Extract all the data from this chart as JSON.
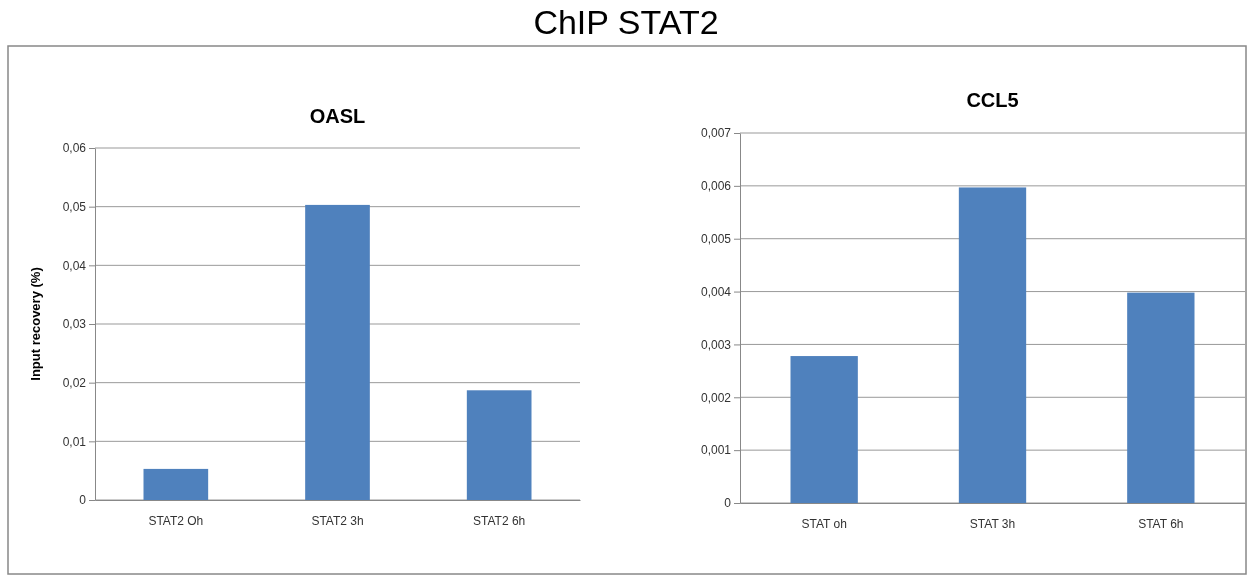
{
  "chart_data": [
    {
      "type": "bar",
      "title": "OASL",
      "annotations": [
        "ChIP STAT2"
      ],
      "ylabel": "Input recovery (%)",
      "categories": [
        "STAT2 Oh",
        "STAT2 3h",
        "STAT2 6h"
      ],
      "values": [
        0.0053,
        0.0503,
        0.0187
      ],
      "color": "#4f81bd",
      "ylim": [
        0,
        0.06
      ],
      "yticks": [
        0,
        {
          "value": 0.01,
          "label": "0,01"
        },
        {
          "value": 0.02,
          "label": "0,02"
        },
        {
          "value": 0.03,
          "label": "0,03"
        },
        {
          "value": 0.04,
          "label": "0,04"
        },
        {
          "value": 0.05,
          "label": "0,05"
        },
        {
          "value": 0.06,
          "label": "0,06"
        }
      ],
      "grid": "y"
    },
    {
      "type": "bar",
      "title": "CCL5",
      "categories": [
        "STAT oh",
        "STAT 3h",
        "STAT 6h"
      ],
      "values": [
        0.00278,
        0.00597,
        0.00398
      ],
      "color": "#4f81bd",
      "ylim": [
        0,
        0.007
      ],
      "yticks": [
        0,
        {
          "value": 0.001,
          "label": "0,001"
        },
        {
          "value": 0.002,
          "label": "0,002"
        },
        {
          "value": 0.003,
          "label": "0,003"
        },
        {
          "value": 0.004,
          "label": "0,004"
        },
        {
          "value": 0.005,
          "label": "0,005"
        },
        {
          "value": 0.006,
          "label": "0,006"
        },
        {
          "value": 0.007,
          "label": "0,007"
        }
      ],
      "grid": "y"
    }
  ]
}
